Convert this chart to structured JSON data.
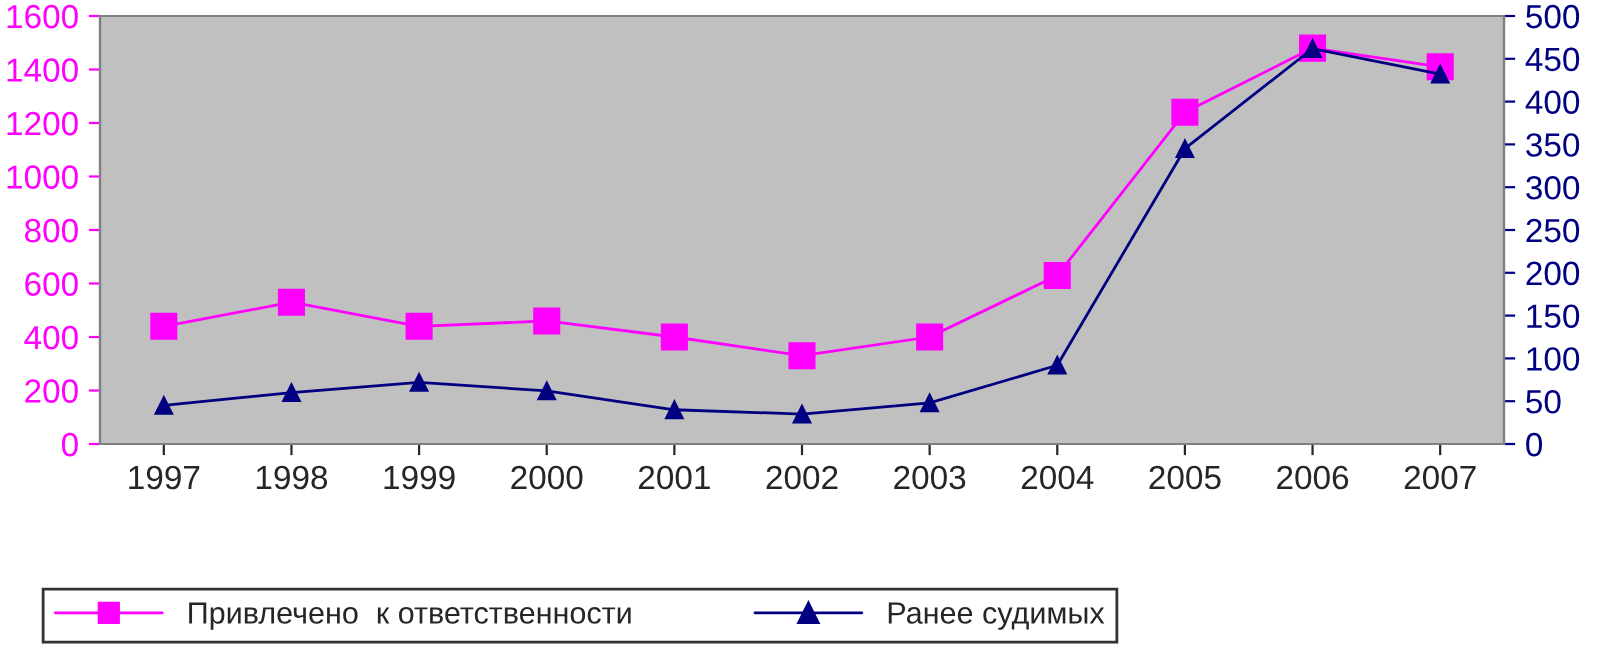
{
  "chart_data": {
    "type": "line",
    "categories": [
      "1997",
      "1998",
      "1999",
      "2000",
      "2001",
      "2002",
      "2003",
      "2004",
      "2005",
      "2006",
      "2007"
    ],
    "series": [
      {
        "name": "Привлечено  к ответственности",
        "color": "#ff00ff",
        "marker": "square",
        "values": [
          440,
          530,
          440,
          460,
          400,
          330,
          400,
          630,
          1240,
          1480,
          1410
        ]
      },
      {
        "name": "Ранее судимых",
        "color": "#000080",
        "marker": "triangle",
        "axis": "y2",
        "values": [
          45,
          60,
          72,
          62,
          40,
          35,
          48,
          92,
          345,
          462,
          432
        ]
      }
    ],
    "ylim": [
      0,
      1600
    ],
    "yticks": [
      0,
      200,
      400,
      600,
      800,
      1000,
      1200,
      1400,
      1600
    ],
    "y2lim": [
      0,
      500
    ],
    "y2ticks": [
      0,
      50,
      100,
      150,
      200,
      250,
      300,
      350,
      400,
      450,
      500
    ],
    "grid": false,
    "legend": "bottom"
  }
}
